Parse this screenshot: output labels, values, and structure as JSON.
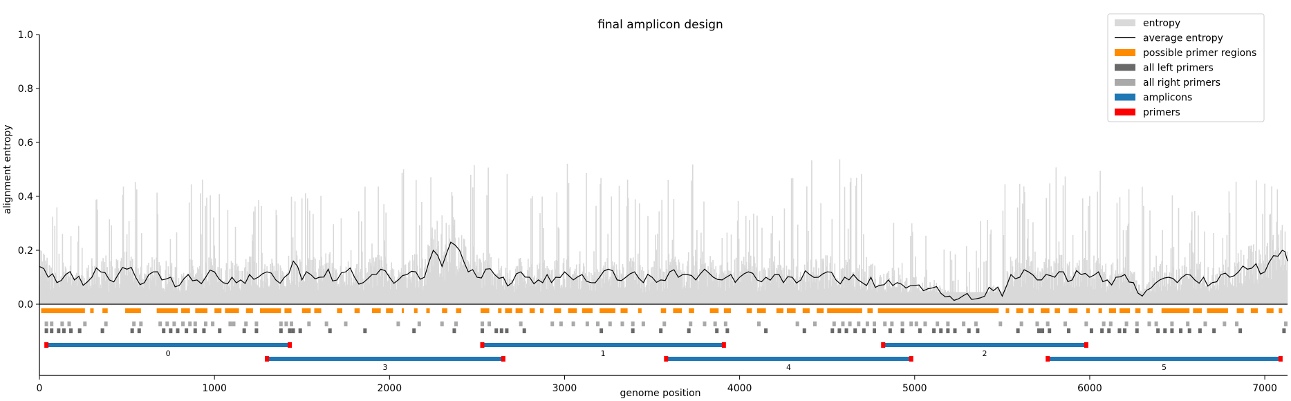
{
  "chart_data": {
    "type": "line",
    "title": "final amplicon design",
    "xlabel": "genome position",
    "ylabel": "alignment entropy",
    "xlim": [
      0,
      7130
    ],
    "ylim": [
      0,
      1.0
    ],
    "x_ticks": [
      0,
      1000,
      2000,
      3000,
      4000,
      5000,
      6000,
      7000
    ],
    "y_ticks": [
      0.0,
      0.2,
      0.4,
      0.6,
      0.8,
      1.0
    ],
    "y_tick_labels": [
      "0.0",
      "0.2",
      "0.4",
      "0.6",
      "0.8",
      "1.0"
    ],
    "legend_position": "top-right",
    "legend": [
      {
        "label": "entropy",
        "type": "patch",
        "color": "#d9d9d9"
      },
      {
        "label": "average entropy",
        "type": "line",
        "color": "#000000"
      },
      {
        "label": "possible primer regions",
        "type": "patch",
        "color": "#ff8c00"
      },
      {
        "label": "all left primers",
        "type": "patch",
        "color": "#696969"
      },
      {
        "label": "all right primers",
        "type": "patch",
        "color": "#a9a9a9"
      },
      {
        "label": "amplicons",
        "type": "patch",
        "color": "#1f77b4"
      },
      {
        "label": "primers",
        "type": "patch",
        "color": "#ff0000"
      }
    ],
    "average_entropy": {
      "x": [
        0,
        50,
        100,
        150,
        200,
        250,
        300,
        350,
        400,
        450,
        500,
        550,
        600,
        650,
        700,
        750,
        800,
        850,
        900,
        950,
        1000,
        1050,
        1100,
        1150,
        1200,
        1250,
        1300,
        1350,
        1400,
        1450,
        1500,
        1550,
        1600,
        1650,
        1700,
        1750,
        1800,
        1850,
        1900,
        1950,
        2000,
        2050,
        2100,
        2150,
        2200,
        2250,
        2300,
        2350,
        2400,
        2450,
        2500,
        2550,
        2600,
        2650,
        2700,
        2750,
        2800,
        2850,
        2900,
        2950,
        3000,
        3050,
        3100,
        3150,
        3200,
        3250,
        3300,
        3350,
        3400,
        3450,
        3500,
        3550,
        3600,
        3650,
        3700,
        3750,
        3800,
        3850,
        3900,
        3950,
        4000,
        4050,
        4100,
        4150,
        4200,
        4250,
        4300,
        4350,
        4400,
        4450,
        4500,
        4550,
        4600,
        4650,
        4700,
        4750,
        4800,
        4850,
        4900,
        4950,
        5000,
        5050,
        5100,
        5150,
        5200,
        5250,
        5300,
        5350,
        5400,
        5450,
        5500,
        5550,
        5600,
        5650,
        5700,
        5750,
        5800,
        5850,
        5900,
        5950,
        6000,
        6050,
        6100,
        6150,
        6200,
        6250,
        6300,
        6350,
        6400,
        6450,
        6500,
        6550,
        6600,
        6650,
        6700,
        6750,
        6800,
        6850,
        6900,
        6950,
        7000,
        7050,
        7100,
        7130
      ],
      "y": [
        0.14,
        0.1,
        0.08,
        0.11,
        0.09,
        0.07,
        0.1,
        0.12,
        0.09,
        0.11,
        0.13,
        0.1,
        0.08,
        0.12,
        0.09,
        0.1,
        0.07,
        0.11,
        0.09,
        0.1,
        0.12,
        0.08,
        0.1,
        0.09,
        0.11,
        0.1,
        0.12,
        0.09,
        0.1,
        0.16,
        0.09,
        0.11,
        0.1,
        0.13,
        0.09,
        0.12,
        0.1,
        0.08,
        0.11,
        0.13,
        0.1,
        0.09,
        0.11,
        0.12,
        0.1,
        0.2,
        0.14,
        0.23,
        0.2,
        0.12,
        0.1,
        0.13,
        0.11,
        0.1,
        0.08,
        0.12,
        0.1,
        0.09,
        0.11,
        0.1,
        0.12,
        0.09,
        0.11,
        0.08,
        0.1,
        0.13,
        0.09,
        0.1,
        0.12,
        0.08,
        0.1,
        0.09,
        0.12,
        0.1,
        0.11,
        0.09,
        0.13,
        0.1,
        0.09,
        0.11,
        0.1,
        0.12,
        0.09,
        0.1,
        0.11,
        0.08,
        0.1,
        0.09,
        0.11,
        0.1,
        0.12,
        0.09,
        0.1,
        0.11,
        0.08,
        0.1,
        0.07,
        0.09,
        0.08,
        0.06,
        0.07,
        0.05,
        0.06,
        0.04,
        0.03,
        0.02,
        0.04,
        0.02,
        0.03,
        0.05,
        0.03,
        0.11,
        0.1,
        0.12,
        0.09,
        0.11,
        0.1,
        0.12,
        0.09,
        0.11,
        0.1,
        0.12,
        0.09,
        0.1,
        0.11,
        0.08,
        0.03,
        0.06,
        0.09,
        0.1,
        0.08,
        0.11,
        0.09,
        0.1,
        0.08,
        0.11,
        0.1,
        0.12,
        0.13,
        0.15,
        0.12,
        0.18,
        0.2,
        0.16
      ]
    },
    "entropy_envelope": {
      "x": [
        0,
        250,
        500,
        750,
        1000,
        1250,
        1500,
        1750,
        2000,
        2250,
        2500,
        2750,
        3000,
        3250,
        3500,
        3750,
        4000,
        4250,
        4500,
        4750,
        5000,
        5250,
        5500,
        5750,
        6000,
        6250,
        6500,
        6750,
        7000,
        7130
      ],
      "y": [
        0.32,
        0.36,
        0.4,
        0.38,
        0.42,
        0.35,
        0.4,
        0.38,
        0.45,
        0.42,
        0.48,
        0.45,
        0.5,
        0.44,
        0.42,
        0.46,
        0.38,
        0.4,
        0.5,
        0.4,
        0.26,
        0.18,
        0.4,
        0.44,
        0.46,
        0.4,
        0.38,
        0.4,
        0.42,
        0.38
      ]
    },
    "possible_primer_regions": [
      [
        10,
        260
      ],
      [
        290,
        310
      ],
      [
        360,
        390
      ],
      [
        490,
        580
      ],
      [
        670,
        790
      ],
      [
        810,
        860
      ],
      [
        890,
        960
      ],
      [
        1000,
        1040
      ],
      [
        1060,
        1140
      ],
      [
        1180,
        1220
      ],
      [
        1260,
        1380
      ],
      [
        1400,
        1440
      ],
      [
        1500,
        1550
      ],
      [
        1570,
        1610
      ],
      [
        1700,
        1730
      ],
      [
        1800,
        1830
      ],
      [
        1900,
        1950
      ],
      [
        1980,
        2020
      ],
      [
        2070,
        2080
      ],
      [
        2140,
        2160
      ],
      [
        2210,
        2230
      ],
      [
        2300,
        2330
      ],
      [
        2380,
        2410
      ],
      [
        2520,
        2570
      ],
      [
        2620,
        2640
      ],
      [
        2660,
        2700
      ],
      [
        2720,
        2760
      ],
      [
        2800,
        2830
      ],
      [
        2860,
        2880
      ],
      [
        2940,
        2980
      ],
      [
        3020,
        3070
      ],
      [
        3100,
        3160
      ],
      [
        3200,
        3290
      ],
      [
        3320,
        3360
      ],
      [
        3420,
        3440
      ],
      [
        3550,
        3580
      ],
      [
        3620,
        3670
      ],
      [
        3710,
        3740
      ],
      [
        3830,
        3880
      ],
      [
        3910,
        3950
      ],
      [
        4040,
        4070
      ],
      [
        4100,
        4150
      ],
      [
        4210,
        4250
      ],
      [
        4270,
        4320
      ],
      [
        4360,
        4400
      ],
      [
        4440,
        4480
      ],
      [
        4500,
        4700
      ],
      [
        4730,
        4760
      ],
      [
        4790,
        5480
      ],
      [
        5520,
        5540
      ],
      [
        5580,
        5620
      ],
      [
        5650,
        5680
      ],
      [
        5720,
        5770
      ],
      [
        5800,
        5830
      ],
      [
        5880,
        5930
      ],
      [
        5980,
        6000
      ],
      [
        6050,
        6070
      ],
      [
        6110,
        6150
      ],
      [
        6170,
        6230
      ],
      [
        6260,
        6290
      ],
      [
        6330,
        6360
      ],
      [
        6410,
        6570
      ],
      [
        6590,
        6640
      ],
      [
        6670,
        6790
      ],
      [
        6840,
        6880
      ],
      [
        6920,
        6960
      ],
      [
        7010,
        7050
      ],
      [
        7080,
        7100
      ]
    ],
    "left_primers": [
      30,
      60,
      100,
      130,
      170,
      220,
      350,
      520,
      560,
      700,
      740,
      780,
      830,
      880,
      930,
      1020,
      1160,
      1230,
      1370,
      1420,
      1440,
      1480,
      1650,
      1850,
      2130,
      2360,
      2520,
      2600,
      2630,
      2660,
      2760,
      3200,
      3380,
      3540,
      3700,
      3860,
      3920,
      4140,
      4360,
      4520,
      4560,
      4600,
      4650,
      4700,
      4760,
      4850,
      4920,
      5020,
      5100,
      5140,
      5180,
      5220,
      5300,
      5350,
      5580,
      5700,
      5720,
      5760,
      5870,
      6000,
      6060,
      6100,
      6160,
      6190,
      6260,
      6380,
      6420,
      6460,
      6510,
      6560,
      6620,
      6700,
      6850,
      7100
    ],
    "right_primers": [
      30,
      60,
      120,
      160,
      250,
      370,
      530,
      570,
      680,
      720,
      760,
      810,
      850,
      880,
      940,
      980,
      1080,
      1100,
      1170,
      1230,
      1370,
      1400,
      1430,
      1530,
      1630,
      1740,
      2040,
      2160,
      2290,
      2370,
      2520,
      2560,
      2740,
      2920,
      2970,
      3040,
      3120,
      3180,
      3250,
      3320,
      3380,
      3440,
      3560,
      3710,
      3790,
      3850,
      3910,
      4100,
      4320,
      4420,
      4530,
      4580,
      4620,
      4670,
      4720,
      4760,
      4820,
      4860,
      4920,
      4970,
      5000,
      5050,
      5120,
      5180,
      5270,
      5340,
      5480,
      5600,
      5690,
      5750,
      5850,
      5970,
      6070,
      6110,
      6200,
      6260,
      6330,
      6370,
      6460,
      6550,
      6650,
      6760,
      6830,
      7110
    ],
    "amplicons": [
      {
        "label": "0",
        "start": 40,
        "end": 1430,
        "row": 0
      },
      {
        "label": "3",
        "start": 1300,
        "end": 2650,
        "row": 1
      },
      {
        "label": "1",
        "start": 2530,
        "end": 3910,
        "row": 0
      },
      {
        "label": "4",
        "start": 3580,
        "end": 4980,
        "row": 1
      },
      {
        "label": "2",
        "start": 4820,
        "end": 5980,
        "row": 0
      },
      {
        "label": "5",
        "start": 5760,
        "end": 7090,
        "row": 1
      }
    ]
  }
}
